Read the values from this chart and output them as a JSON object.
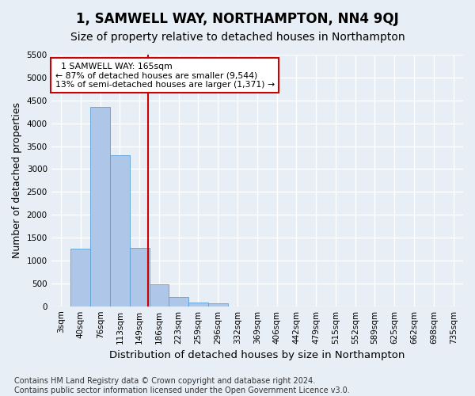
{
  "title": "1, SAMWELL WAY, NORTHAMPTON, NN4 9QJ",
  "subtitle": "Size of property relative to detached houses in Northampton",
  "xlabel": "Distribution of detached houses by size in Northampton",
  "ylabel": "Number of detached properties",
  "footer_line1": "Contains HM Land Registry data © Crown copyright and database right 2024.",
  "footer_line2": "Contains public sector information licensed under the Open Government Licence v3.0.",
  "categories": [
    "3sqm",
    "40sqm",
    "76sqm",
    "113sqm",
    "149sqm",
    "186sqm",
    "223sqm",
    "259sqm",
    "296sqm",
    "332sqm",
    "369sqm",
    "406sqm",
    "442sqm",
    "479sqm",
    "515sqm",
    "552sqm",
    "589sqm",
    "625sqm",
    "662sqm",
    "698sqm",
    "735sqm"
  ],
  "values": [
    0,
    1260,
    4360,
    3300,
    1270,
    480,
    210,
    85,
    60,
    0,
    0,
    0,
    0,
    0,
    0,
    0,
    0,
    0,
    0,
    0,
    0
  ],
  "bar_color": "#aec6e8",
  "bar_edge_color": "#5a9fd4",
  "vline_x": 4.45,
  "vline_color": "#cc0000",
  "annotation_text": "  1 SAMWELL WAY: 165sqm\n← 87% of detached houses are smaller (9,544)\n13% of semi-detached houses are larger (1,371) →",
  "annotation_box_color": "#ffffff",
  "annotation_box_edge": "#cc0000",
  "ylim": [
    0,
    5500
  ],
  "yticks": [
    0,
    500,
    1000,
    1500,
    2000,
    2500,
    3000,
    3500,
    4000,
    4500,
    5000,
    5500
  ],
  "background_color": "#e8eef5",
  "grid_color": "#ffffff",
  "title_fontsize": 12,
  "subtitle_fontsize": 10,
  "axis_label_fontsize": 9,
  "tick_fontsize": 7.5,
  "footer_fontsize": 7
}
